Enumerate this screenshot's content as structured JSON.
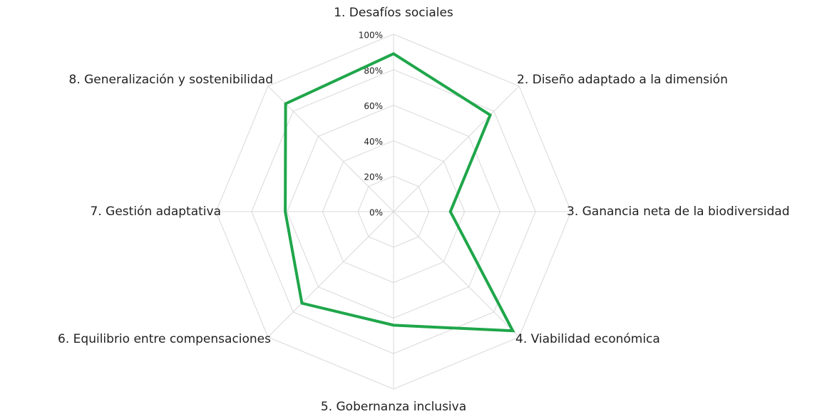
{
  "chart_data": {
    "type": "radar",
    "categories": [
      "1. Desafíos sociales",
      "2. Diseño adaptado a la dimensión",
      "3. Ganancia neta de la biodiversidad",
      "4. Viabilidad económica",
      "5. Gobernanza inclusiva",
      "6. Equilibrio entre compensaciones",
      "7. Gestión adaptativa",
      "8. Generalización y sostenibilidad"
    ],
    "series": [
      {
        "color": "#1fa64a",
        "values": [
          89,
          77,
          32,
          95,
          64,
          73,
          61,
          86
        ]
      }
    ],
    "ylim": [
      0,
      100
    ],
    "yticks": [
      {
        "value": 0,
        "label": "0%"
      },
      {
        "value": 20,
        "label": "20%"
      },
      {
        "value": 40,
        "label": "40%"
      },
      {
        "value": 60,
        "label": "60%"
      },
      {
        "value": 80,
        "label": "80%"
      },
      {
        "value": 100,
        "label": "100%"
      }
    ],
    "grid": true
  }
}
